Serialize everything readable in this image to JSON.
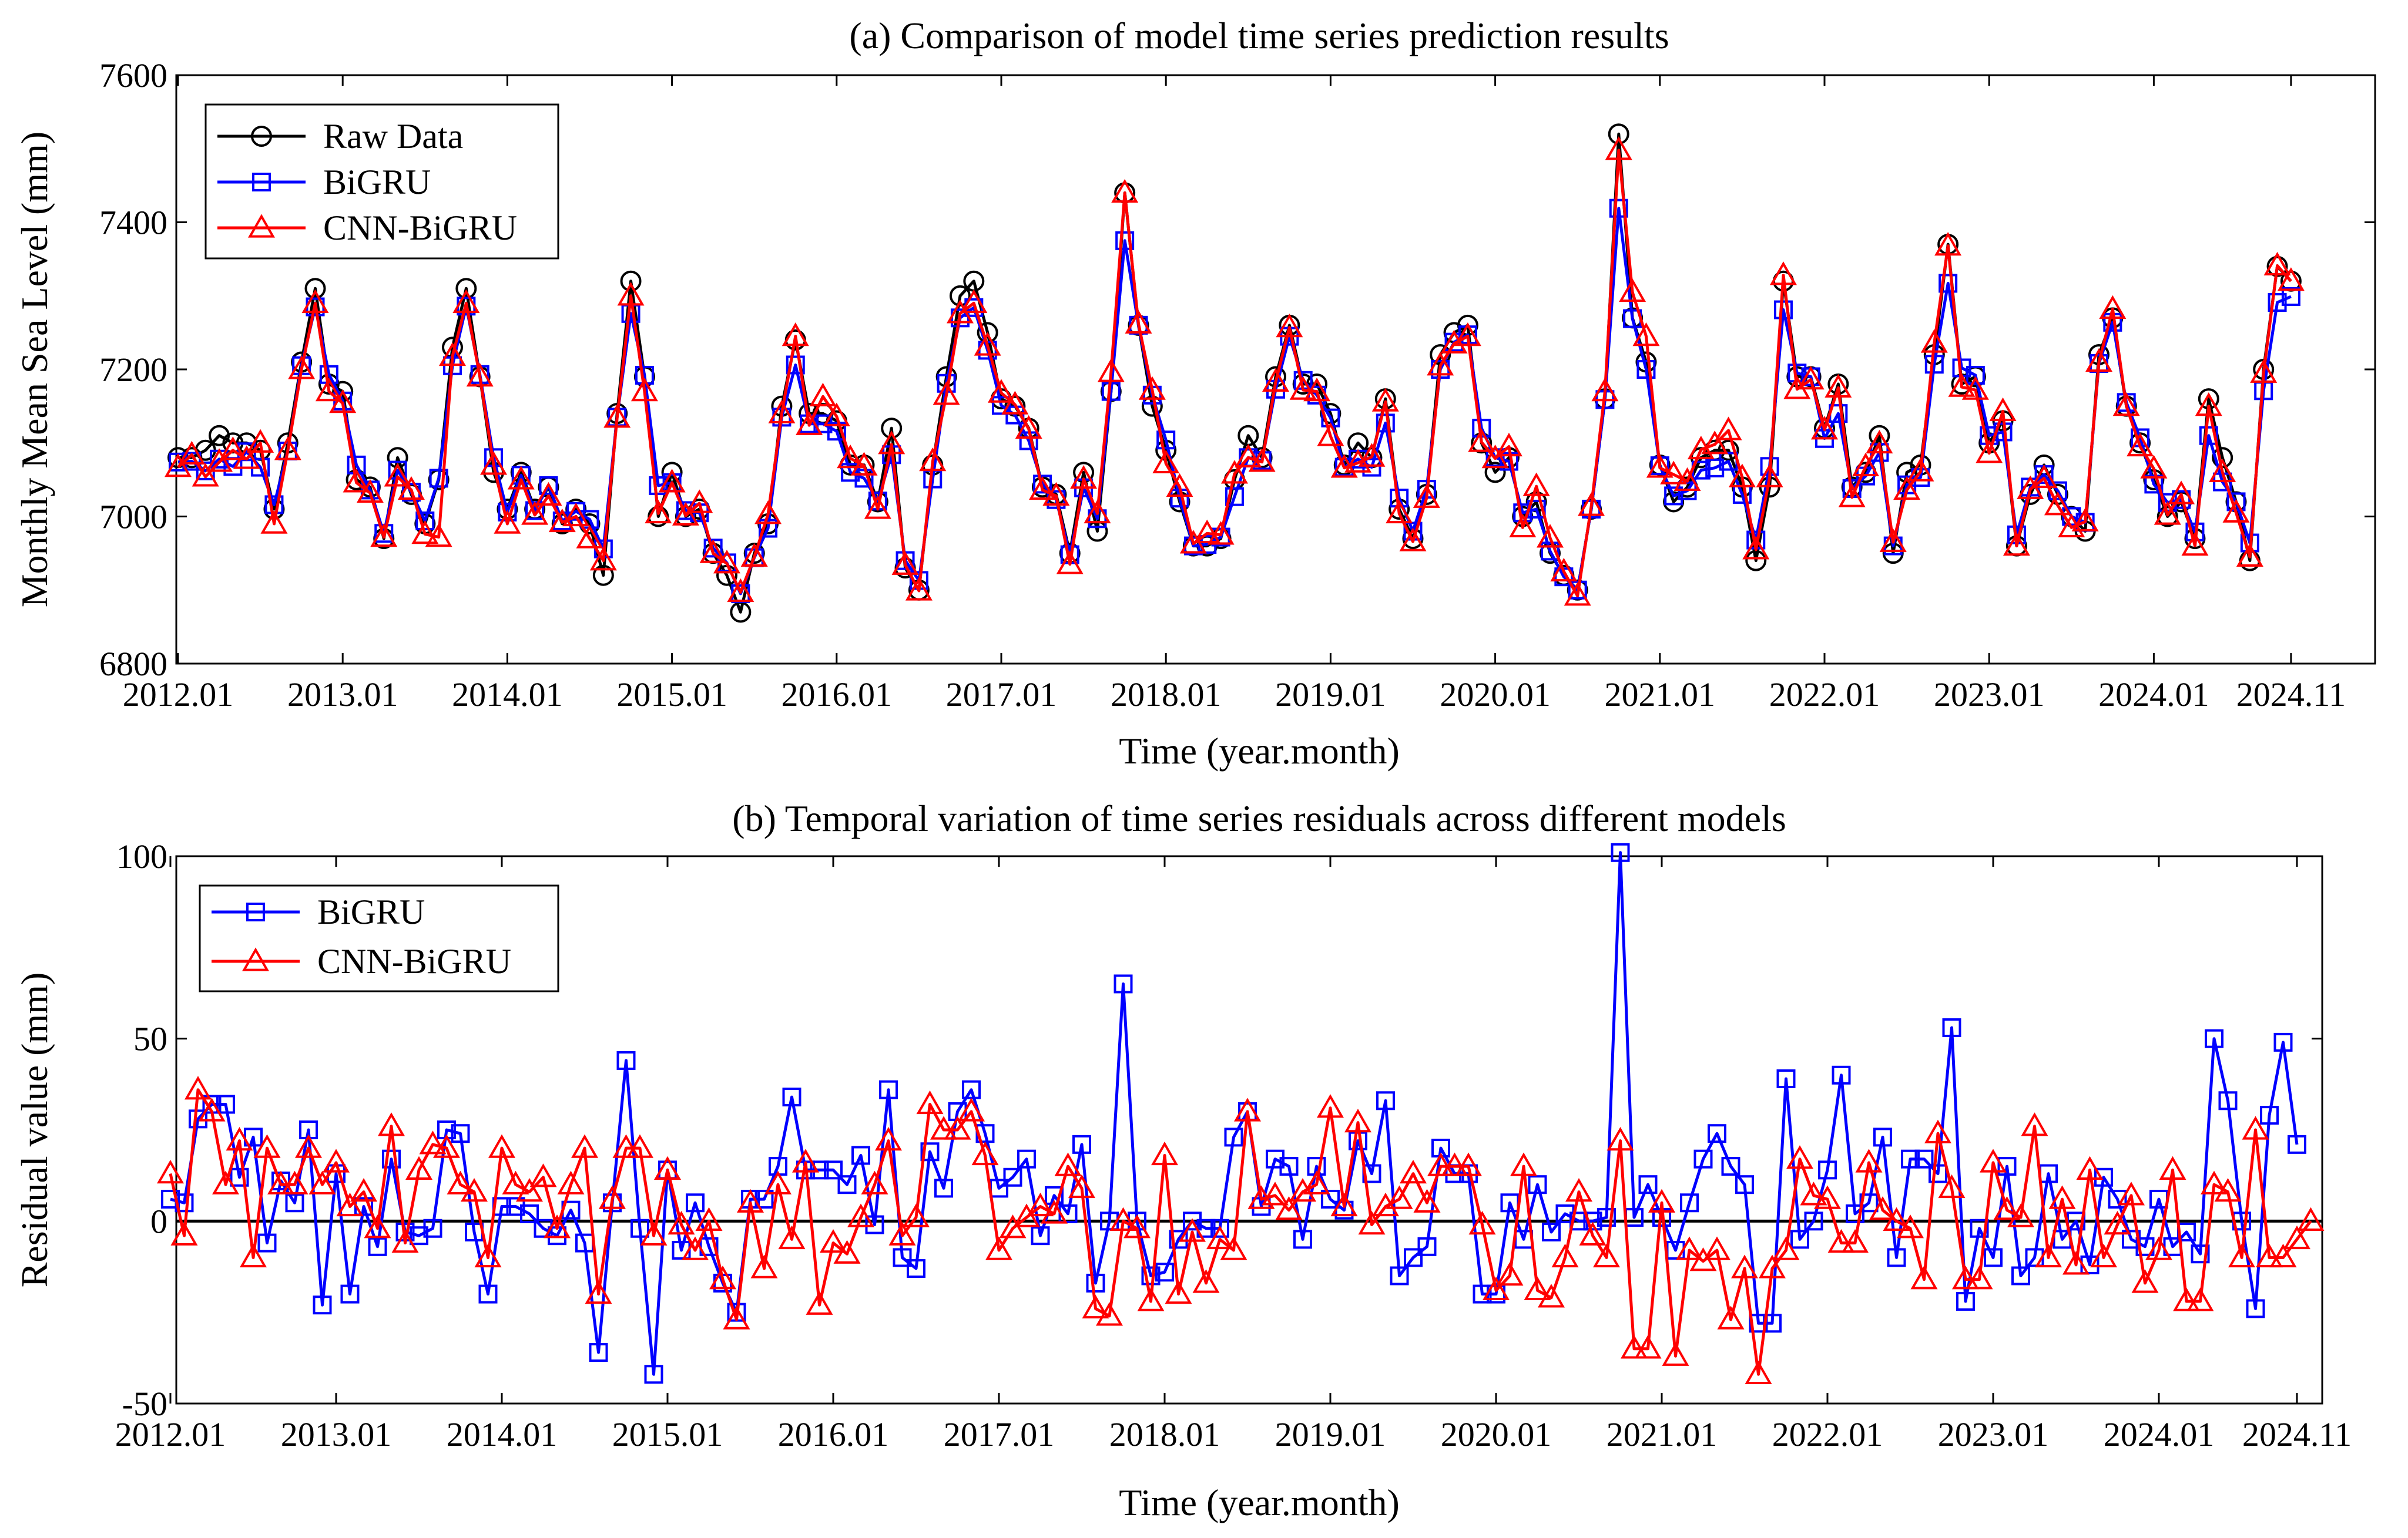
{
  "chart_data": [
    {
      "id": "a",
      "type": "line",
      "title": "(a) Comparison of model time series prediction results",
      "xlabel": "Time (year.month)",
      "ylabel": "Monthly Mean Sea Level (mm)",
      "x_start": "2012.01",
      "x_end": "2024.11",
      "xlim": [
        0,
        155
      ],
      "ylim": [
        6800,
        7600
      ],
      "yticks": [
        6800,
        7000,
        7200,
        7400,
        7600
      ],
      "xticks": [
        {
          "label": "2012.01",
          "i": 0
        },
        {
          "label": "2013.01",
          "i": 12
        },
        {
          "label": "2014.01",
          "i": 24
        },
        {
          "label": "2015.01",
          "i": 36
        },
        {
          "label": "2016.01",
          "i": 48
        },
        {
          "label": "2017.01",
          "i": 60
        },
        {
          "label": "2018.01",
          "i": 72
        },
        {
          "label": "2019.01",
          "i": 84
        },
        {
          "label": "2020.01",
          "i": 96
        },
        {
          "label": "2021.01",
          "i": 108
        },
        {
          "label": "2022.01",
          "i": 120
        },
        {
          "label": "2023.01",
          "i": 132
        },
        {
          "label": "2024.01",
          "i": 144
        },
        {
          "label": "2024.11",
          "i": 154
        }
      ],
      "legend_position": "top-left",
      "series": [
        {
          "name": "Raw Data",
          "color": "#000000",
          "marker": "circle",
          "values": [
            7080,
            7080,
            7090,
            7110,
            7100,
            7100,
            7090,
            7010,
            7100,
            7210,
            7310,
            7180,
            7170,
            7050,
            7040,
            6970,
            7080,
            7030,
            6990,
            7050,
            7230,
            7310,
            7190,
            7060,
            7010,
            7060,
            7010,
            7040,
            6990,
            7010,
            6990,
            6920,
            7140,
            7320,
            7190,
            7000,
            7060,
            7000,
            7010,
            6950,
            6920,
            6870,
            6950,
            6990,
            7150,
            7240,
            7140,
            7140,
            7130,
            7070,
            7070,
            7020,
            7120,
            6930,
            6900,
            7070,
            7190,
            7300,
            7320,
            7250,
            7160,
            7150,
            7120,
            7040,
            7030,
            6950,
            7060,
            6980,
            7170,
            7440,
            7260,
            7150,
            7090,
            7020,
            6960,
            6960,
            6970,
            7050,
            7110,
            7080,
            7190,
            7260,
            7180,
            7180,
            7140,
            7070,
            7100,
            7080,
            7160,
            7010,
            6970,
            7030,
            7220,
            7250,
            7260,
            7100,
            7060,
            7080,
            7000,
            7020,
            6950,
            6920,
            6900,
            7010,
            7160,
            7520,
            7270,
            7210,
            7070,
            7020,
            7040,
            7080,
            7090,
            7090,
            7040,
            6940,
            7040,
            7320,
            7190,
            7190,
            7120,
            7180,
            7040,
            7060,
            7110,
            6950,
            7060,
            7070,
            7220,
            7370,
            7180,
            7190,
            7100,
            7130,
            6960,
            7030,
            7070,
            7030,
            7000,
            6980,
            7220,
            7270,
            7150,
            7100,
            7050,
            7000,
            7020,
            6970,
            7160,
            7080,
            7020,
            6940,
            7200,
            7340,
            7320
          ]
        },
        {
          "name": "BiGRU",
          "color": "#0000ff",
          "marker": "square",
          "values": [
            7074,
            7075,
            7062,
            7078,
            7068,
            7088,
            7067,
            7016,
            7089,
            7205,
            7285,
            7193,
            7157,
            7070,
            7036,
            6977,
            7063,
            7033,
            6994,
            7052,
            7205,
            7286,
            7193,
            7080,
            7006,
            7056,
            7008,
            7042,
            6994,
            7007,
            6996,
            6956,
            7135,
            7276,
            7192,
            7042,
            7046,
            7008,
            7005,
            6957,
            6937,
            6895,
            6944,
            6984,
            7135,
            7206,
            7126,
            7126,
            7116,
            7060,
            7052,
            7021,
            7084,
            6940,
            6913,
            7051,
            7181,
            7270,
            7284,
            7226,
            7151,
            7138,
            7103,
            7044,
            7023,
            6948,
            7039,
            6997,
            7170,
            7375,
            7260,
            7165,
            7104,
            7025,
            6960,
            6962,
            6972,
            7027,
            7080,
            7076,
            7173,
            7245,
            7185,
            7165,
            7134,
            7067,
            7078,
            7067,
            7127,
            7025,
            6980,
            7037,
            7200,
            7237,
            7247,
            7120,
            7080,
            7075,
            7005,
            7010,
            6953,
            6918,
            6900,
            7010,
            7159,
            7419,
            7269,
            7200,
            7069,
            7028,
            7035,
            7063,
            7066,
            7075,
            7030,
            6968,
            7068,
            7281,
            7195,
            7190,
            7106,
            7140,
            7038,
            7055,
            7087,
            6960,
            7043,
            7053,
            7207,
            7317,
            7202,
            7192,
            7110,
            7115,
            6975,
            7040,
            7057,
            7035,
            7000,
            6992,
            7208,
            7264,
            7155,
            7107,
            7044,
            7019,
            7023,
            6979,
            7110,
            7047,
            7020,
            6964,
            7171,
            7291,
            7299
          ]
        },
        {
          "name": "CNN-BiGRU",
          "color": "#ff0000",
          "marker": "triangle",
          "values": [
            7067,
            7084,
            7054,
            7074,
            7090,
            7078,
            7100,
            6990,
            7090,
            7200,
            7290,
            7170,
            7154,
            7046,
            7032,
            6972,
            7054,
            7036,
            6976,
            6972,
            7218,
            7290,
            7190,
            7070,
            6990,
            7050,
            7002,
            7028,
            6992,
            7000,
            6970,
            6940,
            7134,
            7300,
            7170,
            7004,
            7046,
            7001,
            7018,
            6950,
            6936,
            6897,
            6945,
            7003,
            7140,
            7245,
            7124,
            7163,
            7136,
            7079,
            7069,
            7010,
            7098,
            6934,
            6899,
            7075,
            7165,
            7276,
            7290,
            7232,
            7168,
            7152,
            7119,
            7036,
            7028,
            6935,
            7051,
            7004,
            7196,
            7440,
            7262,
            7172,
            7072,
            7040,
            6963,
            6977,
            6975,
            7058,
            7080,
            7074,
            7183,
            7257,
            7172,
            7170,
            7109,
            7066,
            7073,
            7081,
            7156,
            7004,
            6966,
            7025,
            7205,
            7235,
            7245,
            7101,
            7079,
            7095,
            6985,
            7041,
            6971,
            6925,
            6892,
            7014,
            7170,
            7498,
            7305,
            7245,
            7066,
            7057,
            7048,
            7091,
            7098,
            7117,
            7053,
            6955,
            7053,
            7328,
            7173,
            7186,
            7118,
            7175,
            7026,
            7068,
            7099,
            6965,
            7036,
            7061,
            7236,
            7368,
            7176,
            7172,
            7086,
            7143,
            6960,
            7037,
            7052,
            7015,
            6985,
            6993,
            7210,
            7282,
            7150,
            7095,
            7065,
            7002,
            7030,
            6960,
            7150,
            7060,
            7005,
            6945,
            7195,
            7341,
            7320
          ]
        }
      ]
    },
    {
      "id": "b",
      "type": "line",
      "title": "(b) Temporal variation of time series residuals across different models",
      "xlabel": "Time (year.month)",
      "ylabel": "Residual value (mm)",
      "x_start": "2012.01",
      "x_end": "2024.11",
      "xlim": [
        0,
        155
      ],
      "ylim": [
        -50,
        100
      ],
      "yticks": [
        -50,
        0,
        50,
        100
      ],
      "xticks": [
        {
          "label": "2012.01",
          "i": 0
        },
        {
          "label": "2013.01",
          "i": 12
        },
        {
          "label": "2014.01",
          "i": 24
        },
        {
          "label": "2015.01",
          "i": 36
        },
        {
          "label": "2016.01",
          "i": 48
        },
        {
          "label": "2017.01",
          "i": 60
        },
        {
          "label": "2018.01",
          "i": 72
        },
        {
          "label": "2019.01",
          "i": 84
        },
        {
          "label": "2020.01",
          "i": 96
        },
        {
          "label": "2021.01",
          "i": 108
        },
        {
          "label": "2022.01",
          "i": 120
        },
        {
          "label": "2023.01",
          "i": 132
        },
        {
          "label": "2024.01",
          "i": 144
        },
        {
          "label": "2024.11",
          "i": 154
        }
      ],
      "zero_line": true,
      "legend_position": "top-left",
      "series": [
        {
          "name": "BiGRU",
          "color": "#0000ff",
          "marker": "square",
          "values": [
            6,
            5,
            28,
            32,
            32,
            12,
            23,
            -6,
            11,
            5,
            25,
            -23,
            13,
            -20,
            4,
            -7,
            17,
            -3,
            -4,
            -2,
            25,
            24,
            -3,
            -20,
            4,
            4,
            2,
            -2,
            -4,
            3,
            -6,
            -36,
            5,
            44,
            -2,
            -42,
            14,
            -8,
            5,
            -7,
            -17,
            -25,
            6,
            6,
            15,
            34,
            14,
            14,
            14,
            10,
            18,
            -1,
            36,
            -10,
            -13,
            19,
            9,
            30,
            36,
            24,
            9,
            12,
            17,
            -4,
            7,
            2,
            21,
            -17,
            0,
            65,
            0,
            -15,
            -14,
            -5,
            0,
            -2,
            -2,
            23,
            30,
            4,
            17,
            15,
            -5,
            15,
            6,
            3,
            22,
            13,
            33,
            -15,
            -10,
            -7,
            20,
            13,
            13,
            -20,
            -20,
            5,
            -5,
            10,
            -3,
            2,
            0,
            0,
            1,
            101,
            1,
            10,
            1,
            -8,
            5,
            17,
            24,
            15,
            10,
            -28,
            -28,
            39,
            -5,
            0,
            14,
            40,
            2,
            5,
            23,
            -10,
            17,
            17,
            13,
            53,
            -22,
            -2,
            -10,
            15,
            -15,
            -10,
            13,
            -5,
            0,
            -12,
            12,
            6,
            -5,
            -7,
            6,
            -7,
            -3,
            -9,
            50,
            33,
            0,
            -24,
            29,
            49,
            21
          ]
        },
        {
          "name": "CNN-BiGRU",
          "color": "#ff0000",
          "marker": "triangle",
          "values": [
            13,
            -4,
            36,
            30,
            10,
            22,
            -10,
            20,
            10,
            10,
            20,
            10,
            16,
            4,
            8,
            -2,
            26,
            -6,
            14,
            21,
            20,
            10,
            8,
            -10,
            20,
            10,
            8,
            12,
            -2,
            10,
            20,
            -20,
            6,
            20,
            20,
            -4,
            14,
            -1,
            -8,
            0,
            -16,
            -27,
            5,
            -13,
            10,
            -5,
            16,
            -23,
            -6,
            -9,
            1,
            10,
            22,
            -4,
            1,
            32,
            25,
            25,
            30,
            18,
            -8,
            -2,
            1,
            4,
            2,
            15,
            9,
            -24,
            -26,
            0,
            -2,
            -22,
            18,
            -20,
            -3,
            -17,
            -5,
            -8,
            30,
            6,
            7,
            3,
            8,
            10,
            31,
            4,
            27,
            -1,
            4,
            6,
            13,
            5,
            15,
            15,
            15,
            -1,
            -19,
            -15,
            15,
            -19,
            -21,
            -10,
            8,
            -4,
            -10,
            22,
            -35,
            -35,
            5,
            -37,
            -8,
            -11,
            -8,
            -27,
            -13,
            -42,
            -13,
            -8,
            17,
            7,
            6,
            -6,
            -6,
            16,
            3,
            0,
            -2,
            -16,
            24,
            9,
            -16,
            -16,
            16,
            3,
            1,
            26,
            -10,
            6,
            -12,
            14,
            -10,
            -1,
            7,
            -17,
            -8,
            14,
            -22,
            -22,
            10,
            8,
            -10,
            25,
            -10,
            -10,
            -5,
            0
          ]
        }
      ]
    }
  ]
}
